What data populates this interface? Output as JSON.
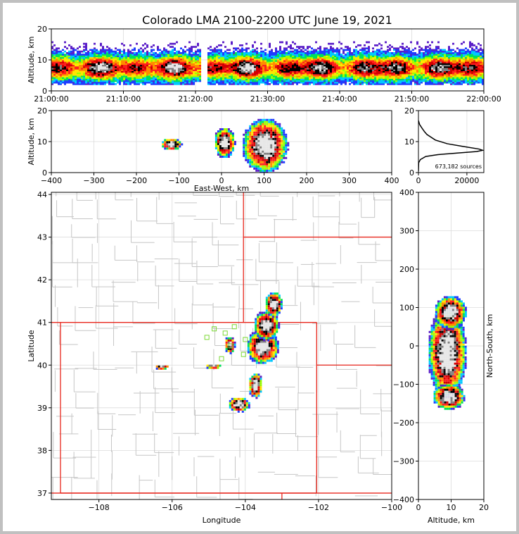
{
  "chart_data": {
    "title": "Colorado LMA 2100-2200 UTC June 19, 2021",
    "type": "heatmap",
    "colors": {
      "state_border": "#e8261c",
      "county_border": "#c6c6c6",
      "station_marker": "#7bd834",
      "frame": "#000000",
      "profile_line": "#000000"
    },
    "density_colormap": [
      "#5a1ec8",
      "#1e3cff",
      "#00c8ff",
      "#00e15a",
      "#9cff00",
      "#ffe600",
      "#ff8c00",
      "#ff1e1e",
      "#d20000",
      "#000000",
      "#808080",
      "#e6e6e6"
    ],
    "panels": {
      "time_height": {
        "ylabel": "Altitude, km",
        "xlim": [
          "21:00:00",
          "22:00:00"
        ],
        "xticks": [
          "21:00:00",
          "21:10:00",
          "21:20:00",
          "21:30:00",
          "21:40:00",
          "21:50:00",
          "22:00:00"
        ],
        "ylim": [
          0,
          20
        ],
        "yticks": [
          0,
          10,
          20
        ],
        "data_gap": [
          "21:20:40",
          "21:21:30"
        ],
        "core_altitude_km": [
          5.5,
          9
        ],
        "envelope_altitude_km": [
          2,
          16
        ]
      },
      "ew_height": {
        "xlabel": "East-West, km",
        "ylabel": "Altitude, km",
        "xlim": [
          -400,
          400
        ],
        "xticks": [
          -400,
          -300,
          -200,
          -100,
          0,
          100,
          200,
          300,
          400
        ],
        "ylim": [
          0,
          20
        ],
        "yticks": [
          0,
          10,
          20
        ],
        "cells": [
          {
            "x_km": 100,
            "z_km": 9,
            "rx_km": 55,
            "rz_km": 9
          },
          {
            "x_km": 5,
            "z_km": 10,
            "rx_km": 25,
            "rz_km": 5
          },
          {
            "x_km": -120,
            "z_km": 9.5,
            "rx_km": 25,
            "rz_km": 2
          }
        ]
      },
      "altitude_histogram": {
        "xlim": [
          0,
          27000
        ],
        "xticks": [
          0,
          20000
        ],
        "ylim": [
          0,
          20
        ],
        "yticks": [
          0,
          10,
          20
        ],
        "annotation": "673,182 sources",
        "profile": [
          {
            "count": 0,
            "alt": 16.8
          },
          {
            "count": 500,
            "alt": 15.5
          },
          {
            "count": 1500,
            "alt": 14.3
          },
          {
            "count": 2500,
            "alt": 13.2
          },
          {
            "count": 3500,
            "alt": 12.3
          },
          {
            "count": 7000,
            "alt": 10.5
          },
          {
            "count": 12000,
            "alt": 9.3
          },
          {
            "count": 18000,
            "alt": 8.5
          },
          {
            "count": 25000,
            "alt": 7.6
          },
          {
            "count": 26500,
            "alt": 7.2
          },
          {
            "count": 24000,
            "alt": 6.8
          },
          {
            "count": 16000,
            "alt": 6.3
          },
          {
            "count": 8000,
            "alt": 5.8
          },
          {
            "count": 3000,
            "alt": 5.2
          },
          {
            "count": 800,
            "alt": 4.2
          },
          {
            "count": 100,
            "alt": 3.2
          },
          {
            "count": 0,
            "alt": 0.5
          }
        ]
      },
      "plan_view": {
        "xlabel": "Longitude",
        "ylabel": "Latitude",
        "xlim": [
          -109.3,
          -100.0
        ],
        "xticks": [
          -108,
          -106,
          -104,
          -102,
          -100
        ],
        "ylim": [
          36.85,
          44.05
        ],
        "yticks": [
          37,
          38,
          39,
          40,
          41,
          42,
          43,
          44
        ],
        "cells": [
          {
            "lon": -103.55,
            "lat": 40.45,
            "rlon": 0.45,
            "rlat": 0.42
          },
          {
            "lon": -103.45,
            "lat": 40.95,
            "rlon": 0.35,
            "rlat": 0.35
          },
          {
            "lon": -103.25,
            "lat": 41.45,
            "rlon": 0.25,
            "rlat": 0.3
          },
          {
            "lon": -103.75,
            "lat": 39.55,
            "rlon": 0.2,
            "rlat": 0.3
          },
          {
            "lon": -104.2,
            "lat": 39.1,
            "rlon": 0.3,
            "rlat": 0.18
          },
          {
            "lon": -104.45,
            "lat": 40.5,
            "rlon": 0.15,
            "rlat": 0.2
          },
          {
            "lon": -104.9,
            "lat": 40.0,
            "rlon": 0.22,
            "rlat": 0.06
          },
          {
            "lon": -106.3,
            "lat": 39.98,
            "rlon": 0.2,
            "rlat": 0.06
          }
        ],
        "stations": [
          {
            "lon": -104.85,
            "lat": 40.85
          },
          {
            "lon": -104.55,
            "lat": 40.75
          },
          {
            "lon": -104.3,
            "lat": 40.9
          },
          {
            "lon": -105.05,
            "lat": 40.65
          },
          {
            "lon": -104.65,
            "lat": 40.15
          },
          {
            "lon": -104.05,
            "lat": 40.25
          },
          {
            "lon": -104.4,
            "lat": 40.45
          },
          {
            "lon": -104.0,
            "lat": 40.6
          }
        ]
      },
      "ns_height": {
        "xlabel": "Altitude, km",
        "ylabel": "North-South, km",
        "xlim": [
          0,
          20
        ],
        "xticks": [
          0,
          10,
          20
        ],
        "ylim": [
          -400,
          400
        ],
        "yticks": [
          -400,
          -300,
          -200,
          -100,
          0,
          100,
          200,
          300,
          400
        ],
        "cells": [
          {
            "z_km": 8.5,
            "y_km": -15,
            "rz_km": 6,
            "ry_km": 120
          },
          {
            "z_km": 9.5,
            "y_km": 90,
            "rz_km": 5,
            "ry_km": 45
          },
          {
            "z_km": 9,
            "y_km": -130,
            "rz_km": 5,
            "ry_km": 35
          }
        ]
      }
    }
  }
}
